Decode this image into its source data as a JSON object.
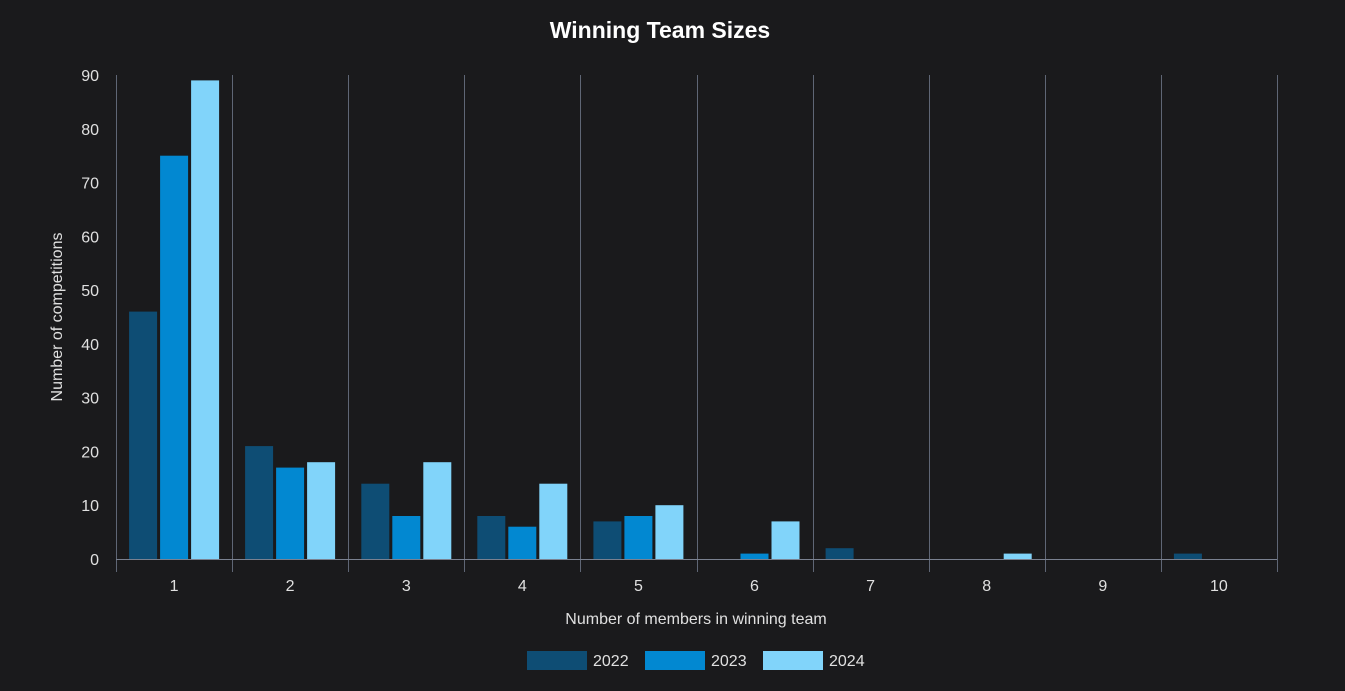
{
  "chart_data": {
    "type": "bar",
    "title": "Winning Team Sizes",
    "xlabel": "Number of members in winning team",
    "ylabel": "Number of competitions",
    "categories": [
      "1",
      "2",
      "3",
      "4",
      "5",
      "6",
      "7",
      "8",
      "9",
      "10"
    ],
    "ylim": [
      0,
      90
    ],
    "yticks": [
      0,
      10,
      20,
      30,
      40,
      50,
      60,
      70,
      80,
      90
    ],
    "grid": "vertical",
    "legend_position": "bottom",
    "series": [
      {
        "name": "2022",
        "color": "#0e4d74",
        "values": [
          46,
          21,
          14,
          8,
          7,
          0,
          2,
          0,
          0,
          1
        ]
      },
      {
        "name": "2023",
        "color": "#0288d1",
        "values": [
          75,
          17,
          8,
          6,
          8,
          1,
          0,
          0,
          0,
          0
        ]
      },
      {
        "name": "2024",
        "color": "#81d4fa",
        "values": [
          89,
          18,
          18,
          14,
          10,
          7,
          0,
          1,
          0,
          0
        ]
      }
    ]
  }
}
